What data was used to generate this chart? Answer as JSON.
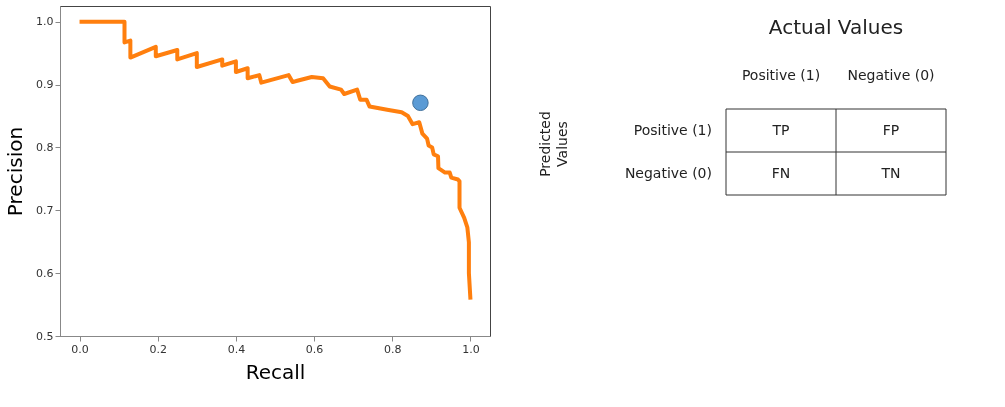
{
  "chart_data": [
    {
      "type": "line",
      "xlabel": "Recall",
      "ylabel": "Precision",
      "xlim": [
        -0.05,
        1.05
      ],
      "ylim": [
        0.5,
        1.025
      ],
      "xticks": [
        {
          "value": 0,
          "label": "0.0"
        },
        0.2,
        0.4,
        0.6,
        0.8,
        {
          "value": 1,
          "label": "1.0"
        }
      ],
      "yticks": [
        0.5,
        0.6,
        0.7,
        0.8,
        0.9,
        {
          "value": 1,
          "label": "1.0"
        }
      ],
      "grid": false,
      "series": [
        {
          "type": "line",
          "color": "#ff7f0e",
          "marker": "none",
          "line_style": "solid",
          "x": [
            0,
            0.115,
            0.115,
            0.13,
            0.13,
            0.195,
            0.195,
            0.25,
            0.25,
            0.3,
            0.3,
            0.365,
            0.365,
            0.4,
            0.4,
            0.43,
            0.43,
            0.46,
            0.465,
            0.535,
            0.545,
            0.557,
            0.594,
            0.623,
            0.64,
            0.669,
            0.677,
            0.71,
            0.718,
            0.734,
            0.742,
            0.787,
            0.824,
            0.84,
            0.852,
            0.869,
            0.877,
            0.889,
            0.893,
            0.902,
            0.906,
            0.917,
            0.918,
            0.935,
            0.947,
            0.951,
            0.968,
            0.972,
            0.972,
            0.984,
            0.992,
            0.996,
            0.996,
            1.0
          ],
          "values": [
            1.0,
            1.0,
            0.967,
            0.97,
            0.943,
            0.96,
            0.945,
            0.955,
            0.94,
            0.95,
            0.928,
            0.94,
            0.93,
            0.937,
            0.92,
            0.926,
            0.91,
            0.915,
            0.903,
            0.915,
            0.904,
            0.906,
            0.912,
            0.91,
            0.897,
            0.892,
            0.885,
            0.892,
            0.876,
            0.876,
            0.865,
            0.86,
            0.856,
            0.85,
            0.837,
            0.84,
            0.822,
            0.814,
            0.803,
            0.8,
            0.789,
            0.786,
            0.767,
            0.76,
            0.76,
            0.752,
            0.749,
            0.746,
            0.704,
            0.688,
            0.673,
            0.649,
            0.6,
            0.558
          ]
        },
        {
          "type": "scatter",
          "color": "#5b9bd5",
          "marker": "circle",
          "x": [
            0.872
          ],
          "values": [
            0.871
          ]
        }
      ]
    },
    {
      "type": "other",
      "title": "Actual Values",
      "ylabel": "Predicted Values",
      "categories": [
        "Positive (1)",
        "Negative (0)"
      ],
      "y_categories": [
        "Positive (1)",
        "Negative (0)"
      ],
      "cell_labels": [
        [
          "TP",
          "FP"
        ],
        [
          "FN",
          "TN"
        ]
      ]
    }
  ]
}
